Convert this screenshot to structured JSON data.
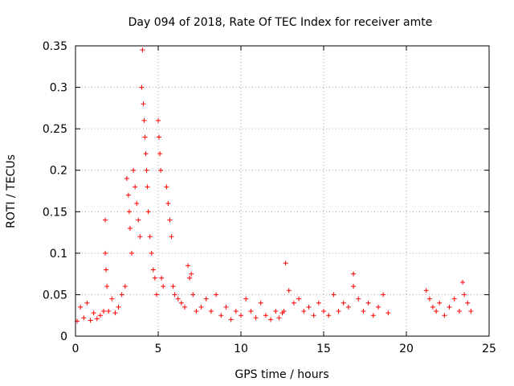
{
  "chart_data": {
    "type": "scatter",
    "title": "Day 094 of 2018, Rate Of TEC Index for receiver amte",
    "xlabel": "GPS time / hours",
    "ylabel": "ROTI / TECUs",
    "xlim": [
      0,
      25
    ],
    "ylim": [
      0,
      0.35
    ],
    "xticks": [
      0,
      5,
      10,
      15,
      20,
      25
    ],
    "yticks": [
      0,
      0.05,
      0.1,
      0.15,
      0.2,
      0.25,
      0.3,
      0.35
    ],
    "xtick_labels": [
      "0",
      "5",
      "10",
      "15",
      "20",
      "25"
    ],
    "ytick_labels": [
      "0",
      "0.05",
      "0.1",
      "0.15",
      "0.2",
      "0.25",
      "0.3",
      "0.35"
    ],
    "grid": true,
    "marker": "+",
    "color": "#ff0000",
    "legend": "none",
    "series": [
      {
        "x": [
          0.1,
          0.3,
          0.5,
          0.7,
          0.9,
          1.1,
          1.3,
          1.5,
          1.7,
          1.8,
          1.8,
          1.85,
          1.9,
          2.0,
          2.2,
          2.4,
          2.6,
          2.8,
          3.0,
          3.1,
          3.2,
          3.25,
          3.3,
          3.4,
          3.5,
          3.6,
          3.7,
          3.8,
          3.9,
          4.0,
          4.05,
          4.1,
          4.15,
          4.2,
          4.25,
          4.3,
          4.35,
          4.4,
          4.5,
          4.6,
          4.7,
          4.8,
          4.9,
          5.0,
          5.05,
          5.1,
          5.15,
          5.2,
          5.3,
          5.5,
          5.6,
          5.7,
          5.8,
          5.9,
          6.0,
          6.2,
          6.4,
          6.6,
          6.8,
          6.9,
          7.0,
          7.1,
          7.3,
          7.6,
          7.9,
          8.2,
          8.5,
          8.8,
          9.1,
          9.4,
          9.7,
          10.0,
          10.3,
          10.6,
          10.9,
          11.2,
          11.5,
          11.8,
          12.1,
          12.3,
          12.5,
          12.6,
          12.7,
          12.9,
          13.2,
          13.5,
          13.8,
          14.1,
          14.4,
          14.7,
          15.0,
          15.3,
          15.6,
          15.9,
          16.2,
          16.5,
          16.8,
          16.8,
          17.1,
          17.4,
          17.7,
          18.0,
          18.3,
          18.6,
          18.9,
          21.2,
          21.4,
          21.6,
          21.8,
          22.0,
          22.3,
          22.6,
          22.9,
          23.2,
          23.4,
          23.5,
          23.7,
          23.9
        ],
        "y": [
          0.018,
          0.035,
          0.022,
          0.04,
          0.019,
          0.028,
          0.021,
          0.025,
          0.03,
          0.14,
          0.1,
          0.08,
          0.06,
          0.03,
          0.045,
          0.028,
          0.035,
          0.05,
          0.06,
          0.19,
          0.17,
          0.15,
          0.13,
          0.1,
          0.2,
          0.18,
          0.16,
          0.14,
          0.12,
          0.3,
          0.345,
          0.28,
          0.26,
          0.24,
          0.22,
          0.2,
          0.18,
          0.15,
          0.12,
          0.1,
          0.08,
          0.07,
          0.05,
          0.26,
          0.24,
          0.22,
          0.2,
          0.07,
          0.06,
          0.18,
          0.16,
          0.14,
          0.12,
          0.06,
          0.05,
          0.045,
          0.04,
          0.035,
          0.085,
          0.07,
          0.075,
          0.05,
          0.03,
          0.035,
          0.045,
          0.03,
          0.05,
          0.025,
          0.035,
          0.02,
          0.03,
          0.025,
          0.045,
          0.03,
          0.022,
          0.04,
          0.025,
          0.02,
          0.03,
          0.022,
          0.028,
          0.03,
          0.088,
          0.055,
          0.04,
          0.045,
          0.03,
          0.035,
          0.025,
          0.04,
          0.03,
          0.025,
          0.05,
          0.03,
          0.04,
          0.035,
          0.075,
          0.06,
          0.045,
          0.03,
          0.04,
          0.025,
          0.035,
          0.05,
          0.028,
          0.055,
          0.045,
          0.035,
          0.03,
          0.04,
          0.025,
          0.035,
          0.045,
          0.03,
          0.065,
          0.05,
          0.04,
          0.03
        ]
      }
    ]
  }
}
